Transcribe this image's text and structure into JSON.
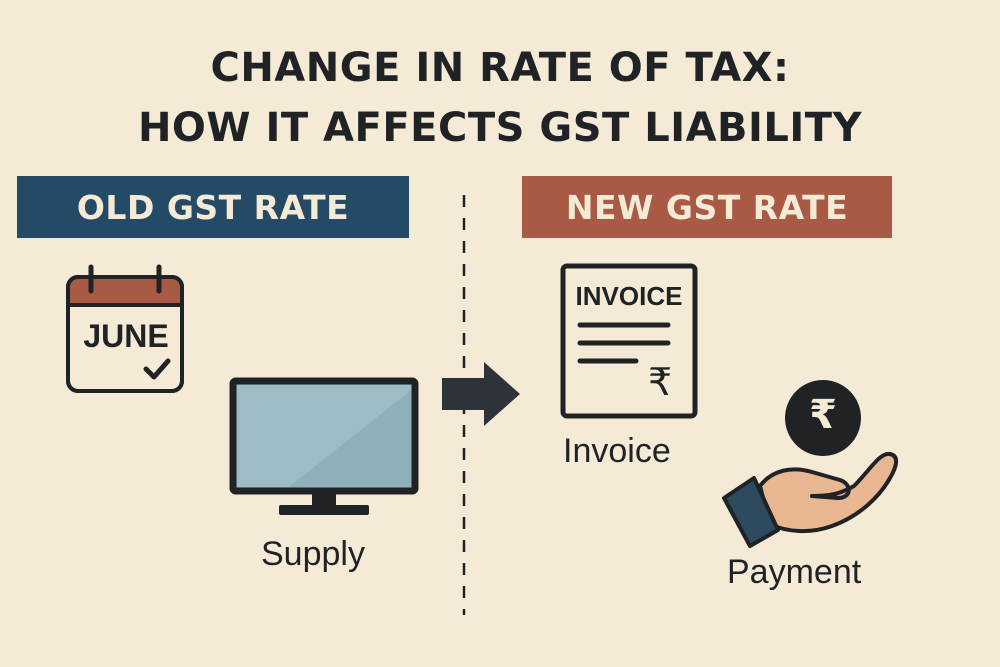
{
  "title": {
    "line1": "CHANGE IN RATE OF TAX:",
    "line2": "HOW IT AFFECTS GST LIABILITY"
  },
  "old_rate": {
    "label": "OLD GST RATE",
    "color": "#244a66"
  },
  "new_rate": {
    "label": "NEW GST RATE",
    "color": "#a85a45"
  },
  "calendar": {
    "month": "JUNE",
    "icon": "calendar-check-icon"
  },
  "supply": {
    "label": "Supply",
    "icon": "monitor-icon"
  },
  "invoice": {
    "heading": "INVOICE",
    "symbol": "₹",
    "label": "Invoice",
    "icon": "invoice-document-icon"
  },
  "payment": {
    "symbol": "₹",
    "label": "Payment",
    "icon": "hand-with-coin-icon"
  },
  "arrow": {
    "icon": "right-arrow-icon"
  },
  "colors": {
    "background": "#f5ead6",
    "ink": "#1f2326",
    "screen": "#8fb0b8",
    "skin": "#e8b791",
    "cuff": "#2d4a5e"
  }
}
